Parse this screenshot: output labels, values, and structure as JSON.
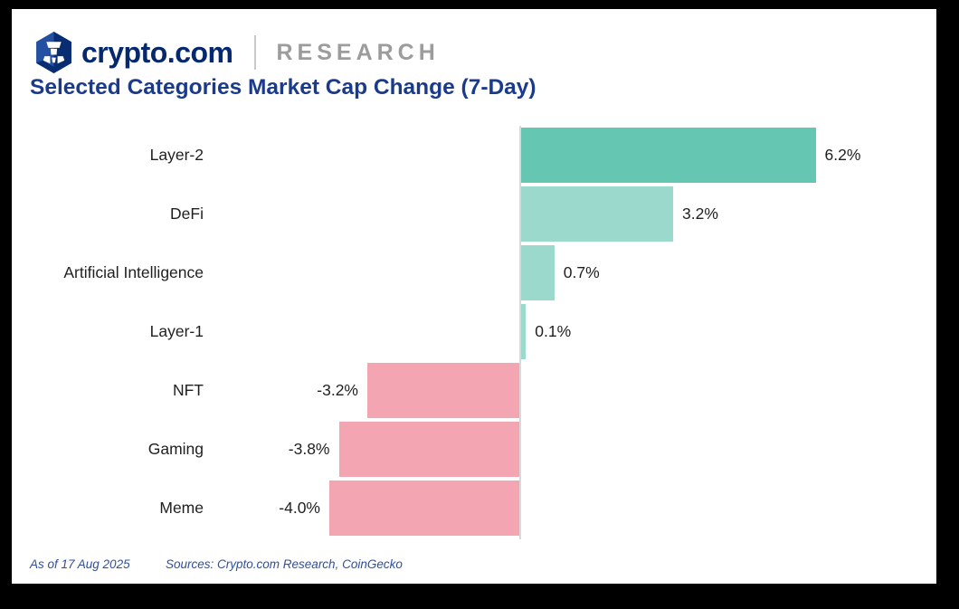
{
  "header": {
    "brand": "crypto.com",
    "brand_suffix": "RESEARCH"
  },
  "title": "Selected Categories Market Cap Change (7-Day)",
  "footer": {
    "as_of": "As of 17 Aug 2025",
    "sources": "Sources: Crypto.com Research, CoinGecko"
  },
  "colors": {
    "frame": "#000000",
    "background": "#ffffff",
    "brand_navy": "#06286e",
    "title_blue": "#1a3a8c",
    "research_gray": "#9c9c9c",
    "axis_gray": "#d9d9d9",
    "positive_strong": "#65c6b2",
    "positive_light": "#9bd9cc",
    "negative_pink": "#f3a6b1",
    "footer_blue": "#2f4f9e"
  },
  "chart_data": {
    "type": "bar",
    "orientation": "horizontal",
    "title": "Selected Categories Market Cap Change (7-Day)",
    "categories": [
      "Layer-2",
      "DeFi",
      "Artificial Intelligence",
      "Layer-1",
      "NFT",
      "Gaming",
      "Meme"
    ],
    "values": [
      6.2,
      3.2,
      0.7,
      0.1,
      -3.2,
      -3.8,
      -4.0
    ],
    "value_labels": [
      "6.2%",
      "3.2%",
      "0.7%",
      "0.1%",
      "-3.2%",
      "-3.8%",
      "-4.0%"
    ],
    "bar_colors": [
      "#65c6b2",
      "#9bd9cc",
      "#9bd9cc",
      "#9bd9cc",
      "#f3a6b1",
      "#f3a6b1",
      "#f3a6b1"
    ],
    "unit": "%",
    "xlim": [
      -4.5,
      7.0
    ],
    "grid": false,
    "legend": false,
    "value_label_position": "outside-end",
    "xlabel": "",
    "ylabel": ""
  }
}
